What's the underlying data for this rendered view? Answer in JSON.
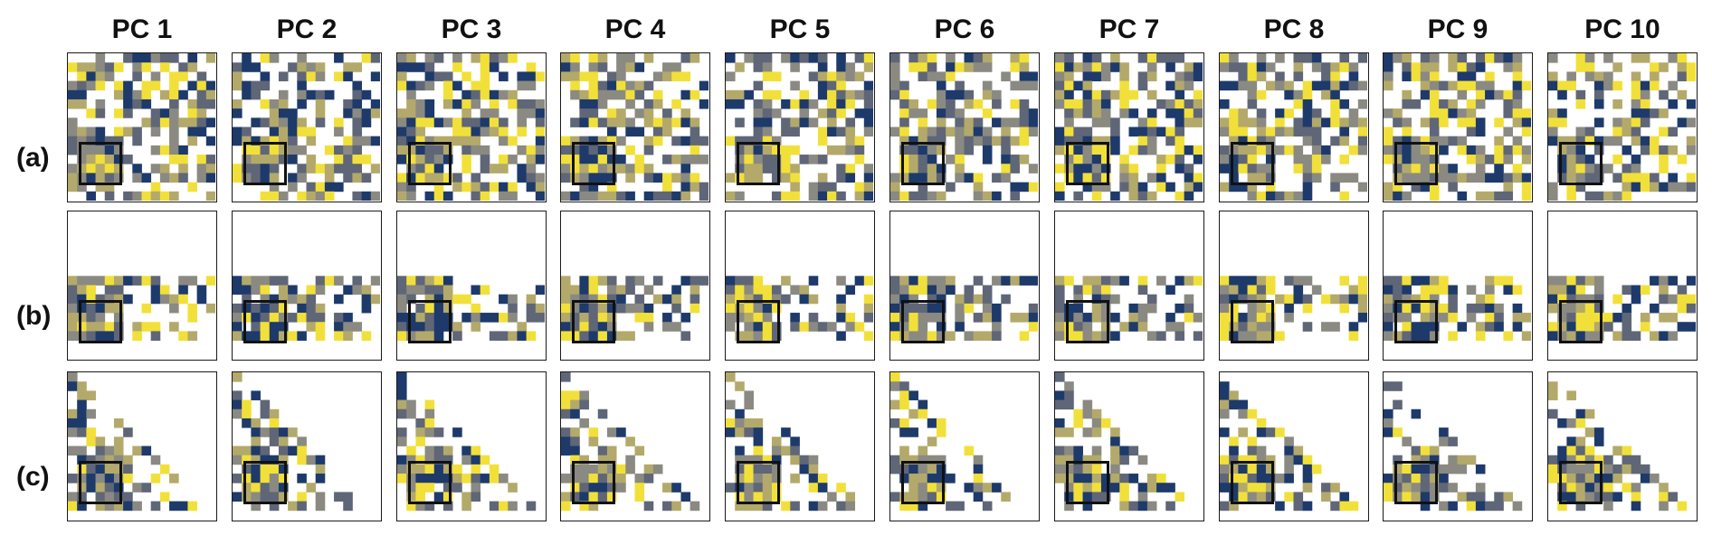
{
  "columns": [
    "PC 1",
    "PC 2",
    "PC 3",
    "PC 4",
    "PC 5",
    "PC 6",
    "PC 7",
    "PC 8",
    "PC 9",
    "PC 10"
  ],
  "rows": [
    {
      "label": "(a)",
      "pattern": "dense"
    },
    {
      "label": "(b)",
      "pattern": "lower-band"
    },
    {
      "label": "(c)",
      "pattern": "lower-triangle"
    }
  ],
  "colors": {
    "navy": "#1d3a6b",
    "slate": "#5f6677",
    "gray": "#8a8a82",
    "olive": "#b3a96b",
    "yellow": "#f2e03a",
    "border": "#1a1a1a"
  },
  "highlight_box": "black square region of interest in lower-left of each panel",
  "grid_size": 16
}
